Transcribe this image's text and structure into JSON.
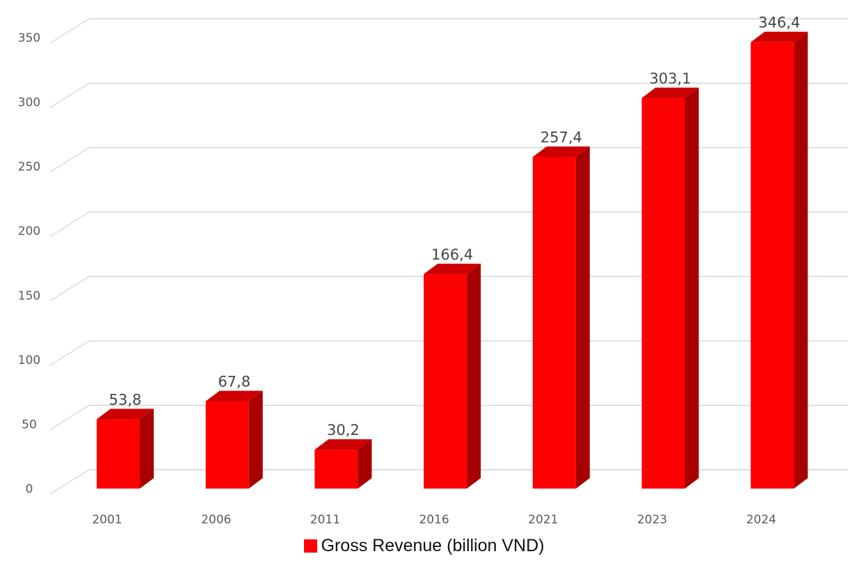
{
  "chart_data": {
    "type": "bar",
    "categories": [
      "2001",
      "2006",
      "2011",
      "2016",
      "2021",
      "2023",
      "2024"
    ],
    "series": [
      {
        "name": "Gross Revenue (billion VND)",
        "values": [
          53.8,
          67.8,
          30.2,
          166.4,
          257.4,
          303.1,
          346.4
        ],
        "value_labels": [
          "53,8",
          "67,8",
          "30,2",
          "166,4",
          "257,4",
          "303,1",
          "346,4"
        ],
        "color": "#ff0000",
        "side_color": "#a80000",
        "top_color": "#cc0000"
      }
    ],
    "ylim": [
      0,
      350
    ],
    "yticks": [
      0,
      50,
      100,
      150,
      200,
      250,
      300,
      350
    ],
    "grid": true,
    "legend": "bottom",
    "style": "3d-column"
  }
}
